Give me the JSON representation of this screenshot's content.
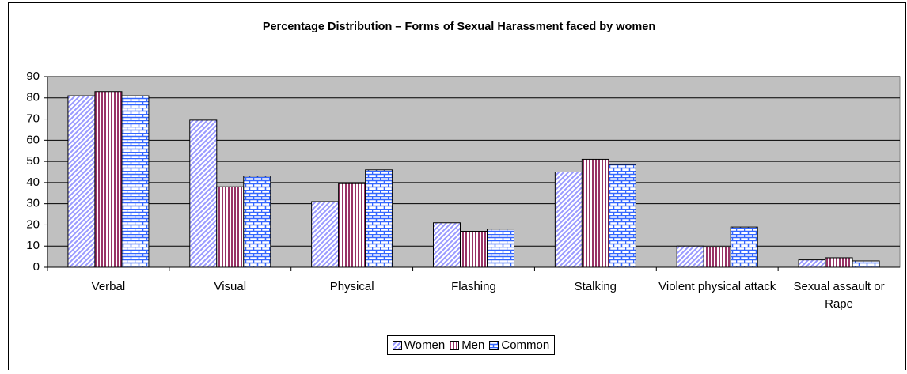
{
  "chart_data": {
    "type": "bar",
    "title": "Percentage Distribution – Forms of Sexual Harassment faced by women",
    "categories": [
      "Verbal",
      "Visual",
      "Physical",
      "Flashing",
      "Stalking",
      "Violent physical attack",
      "Sexual assault or Rape"
    ],
    "series": [
      {
        "name": "Women",
        "color": "#9999ff",
        "values": [
          81,
          69.5,
          31,
          21,
          45,
          10,
          3.5
        ]
      },
      {
        "name": "Men",
        "color": "#993366",
        "values": [
          83,
          38,
          39.5,
          17,
          51,
          9.5,
          4.5
        ]
      },
      {
        "name": "Common",
        "color": "#3366ff",
        "values": [
          81,
          43,
          46,
          18,
          48.5,
          19,
          3
        ]
      }
    ],
    "ylim": [
      0,
      90
    ],
    "yticks": [
      0,
      10,
      20,
      30,
      40,
      50,
      60,
      70,
      80,
      90
    ],
    "grid": true,
    "legend": "bottom"
  }
}
